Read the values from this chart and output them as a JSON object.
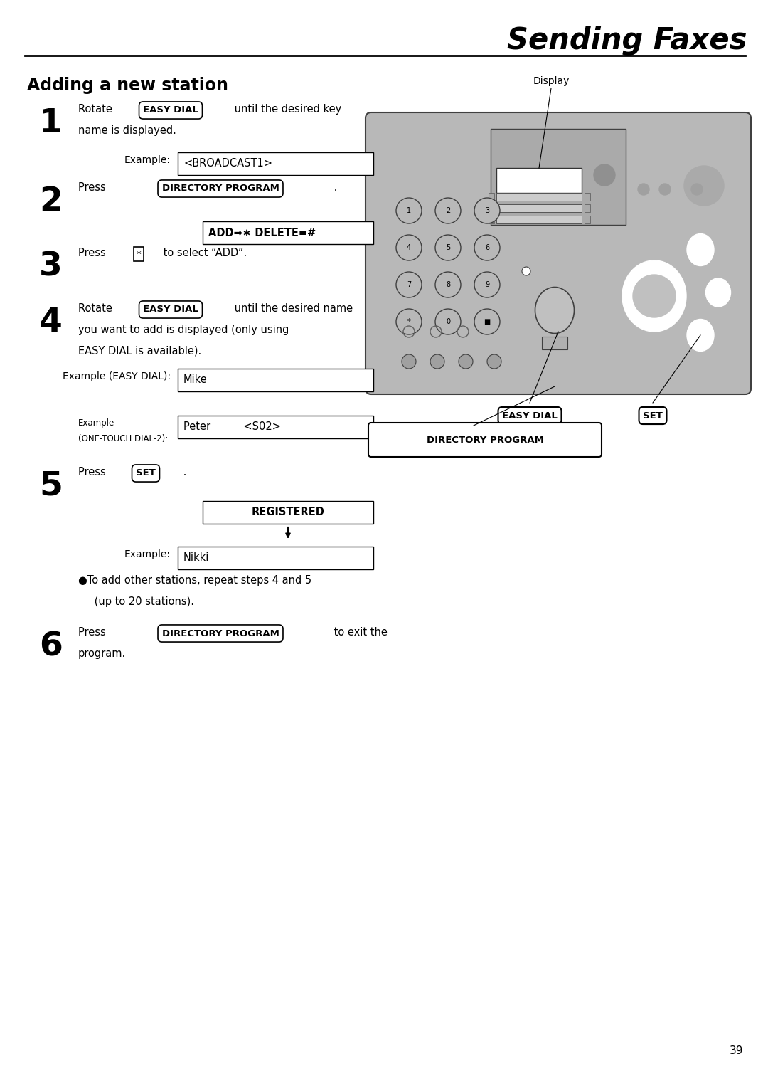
{
  "title": "Sending Faxes",
  "section_title": "Adding a new station",
  "bg_color": "#ffffff",
  "text_color": "#000000",
  "page_number": "39",
  "device_label_display": "Display",
  "device_label_easy_dial": "EASY DIAL",
  "device_label_set": "SET",
  "device_label_dir_prog": "DIRECTORY PROGRAM",
  "step1_text1": "Rotate ",
  "step1_btn1": "EASY DIAL",
  "step1_text2": " until the desired key",
  "step1_text3": "name is displayed.",
  "step1_ex_label": "Example:",
  "step1_ex_val": "<BROADCAST1>",
  "step2_text1": "Press ",
  "step2_btn1": "DIRECTORY PROGRAM",
  "step2_text2": " .",
  "step2_ex_val": "ADD⇒∗ DELETE=#",
  "step3_text1": "Press ",
  "step3_btn1": "*",
  "step3_text2": " to select “ADD”.",
  "step4_text1": "Rotate ",
  "step4_btn1": "EASY DIAL",
  "step4_text2": " until the desired name",
  "step4_text3": "you want to add is displayed (only using",
  "step4_text4": "EASY DIAL is available).",
  "step4_ex1_label": "Example (EASY DIAL):",
  "step4_ex1_val": "Mike",
  "step4_ex2_label1": "Example",
  "step4_ex2_label2": "(ONE-TOUCH DIAL-2):",
  "step4_ex2_val": "Peter          <S02>",
  "step5_text1": "Press ",
  "step5_btn1": "SET",
  "step5_text2": " .",
  "step5_ex1_val": "REGISTERED",
  "step5_ex2_label": "Example:",
  "step5_ex2_val": "Nikki",
  "bullet": "●To add other stations, repeat steps 4 and 5",
  "bullet2": " (up to 20 stations).",
  "step6_text1": "Press ",
  "step6_btn1": "DIRECTORY PROGRAM",
  "step6_text2": " to exit the",
  "step6_text3": "program."
}
